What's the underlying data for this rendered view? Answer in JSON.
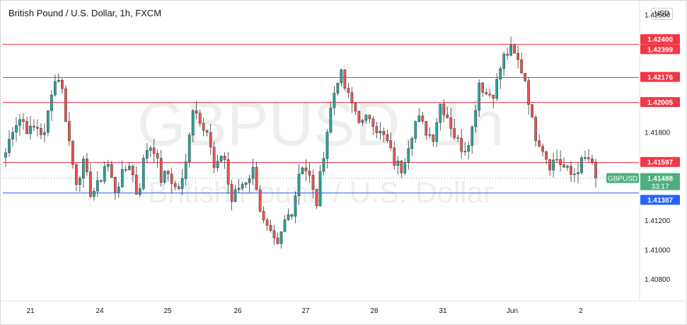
{
  "header": {
    "title": "British Pound / U.S. Dollar, 1h, FXCM",
    "currency": "USD"
  },
  "watermark": {
    "symbol": "GBPUSD, 1h",
    "name": "British Pound / U.S. Dollar"
  },
  "chart_data": {
    "type": "candlestick",
    "ylim": [
      1.4065,
      1.427
    ],
    "yticks": [
      {
        "value": 1.408,
        "label": "1.40800"
      },
      {
        "value": 1.41,
        "label": "1.41000"
      },
      {
        "value": 1.412,
        "label": "1.41200"
      },
      {
        "value": 1.418,
        "label": "1.41800"
      },
      {
        "value": 1.426,
        "label": "1.42600"
      }
    ],
    "xticks": [
      "21",
      "24",
      "25",
      "26",
      "27",
      "28",
      "31",
      "Jun",
      "2"
    ],
    "path": [
      1.4166,
      1.4185,
      1.419,
      1.418,
      1.4184,
      1.4177,
      1.4212,
      1.4219,
      1.418,
      1.4146,
      1.4158,
      1.4138,
      1.4144,
      1.4162,
      1.414,
      1.415,
      1.416,
      1.4135,
      1.4168,
      1.4172,
      1.4148,
      1.4152,
      1.414,
      1.4148,
      1.4198,
      1.419,
      1.418,
      1.415,
      1.417,
      1.4132,
      1.4142,
      1.4148,
      1.4155,
      1.412,
      1.411,
      1.41,
      1.412,
      1.4128,
      1.416,
      1.4152,
      1.413,
      1.4168,
      1.42,
      1.4222,
      1.4205,
      1.4195,
      1.4185,
      1.4192,
      1.418,
      1.4175,
      1.416,
      1.4155,
      1.4175,
      1.419,
      1.4182,
      1.4176,
      1.42,
      1.419,
      1.4175,
      1.4168,
      1.418,
      1.4215,
      1.4205,
      1.4208,
      1.423,
      1.4236,
      1.4228,
      1.4215,
      1.418,
      1.4172,
      1.4158,
      1.4162,
      1.4155,
      1.415,
      1.4158,
      1.4163,
      1.415
    ],
    "levels": [
      {
        "value": 1.424,
        "label": "1.42400",
        "color": "#f23645"
      },
      {
        "value": 1.42399,
        "label": "1.42399",
        "color": "#f23645"
      },
      {
        "value": 1.42176,
        "label": "1.42176",
        "color": "#f23645"
      },
      {
        "value": 1.42005,
        "label": "1.42005",
        "color": "#f23645"
      },
      {
        "value": 1.41597,
        "label": "1.41597",
        "color": "#f23645"
      },
      {
        "value": 1.41387,
        "label": "1.41387",
        "color": "#2962ff"
      }
    ],
    "last_price": {
      "value": 1.41488,
      "label": "1.41488",
      "countdown": "33:17",
      "symbol": "GBPUSD",
      "color": "#4caf7d"
    },
    "up_color": "#26a69a",
    "down_color": "#ef5350"
  }
}
